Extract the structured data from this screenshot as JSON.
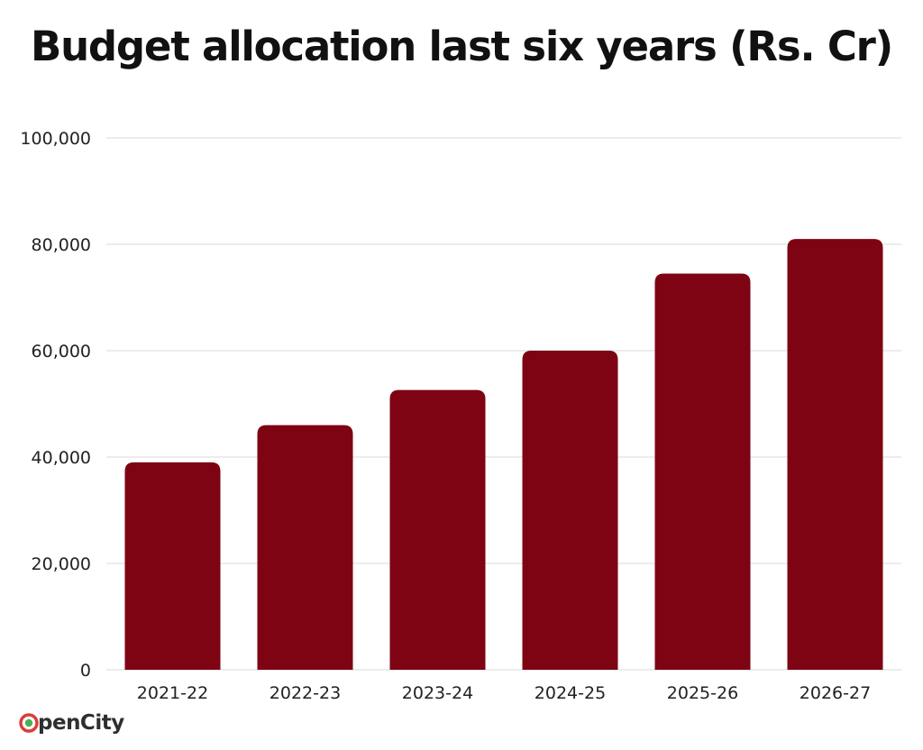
{
  "chart_data": {
    "type": "bar",
    "title": "Budget allocation last six years (Rs. Cr)",
    "categories": [
      "2021-22",
      "2022-23",
      "2023-24",
      "2024-25",
      "2025-26",
      "2026-27"
    ],
    "values": [
      39000,
      46000,
      52600,
      60000,
      74500,
      81000
    ],
    "ylim": [
      0,
      100000
    ],
    "yticks": [
      0,
      20000,
      40000,
      60000,
      80000,
      100000
    ],
    "ytick_labels": [
      "0",
      "20,000",
      "40,000",
      "60,000",
      "80,000",
      "100,000"
    ],
    "xlabel": "",
    "ylabel": "",
    "grid": true,
    "colors": {
      "bar": "#7e0313",
      "grid": "#d9d9d9"
    }
  },
  "branding": {
    "logo_text": "penCity",
    "logo_icon": "opencity-o-icon",
    "logo_color": "#e03a3a"
  }
}
